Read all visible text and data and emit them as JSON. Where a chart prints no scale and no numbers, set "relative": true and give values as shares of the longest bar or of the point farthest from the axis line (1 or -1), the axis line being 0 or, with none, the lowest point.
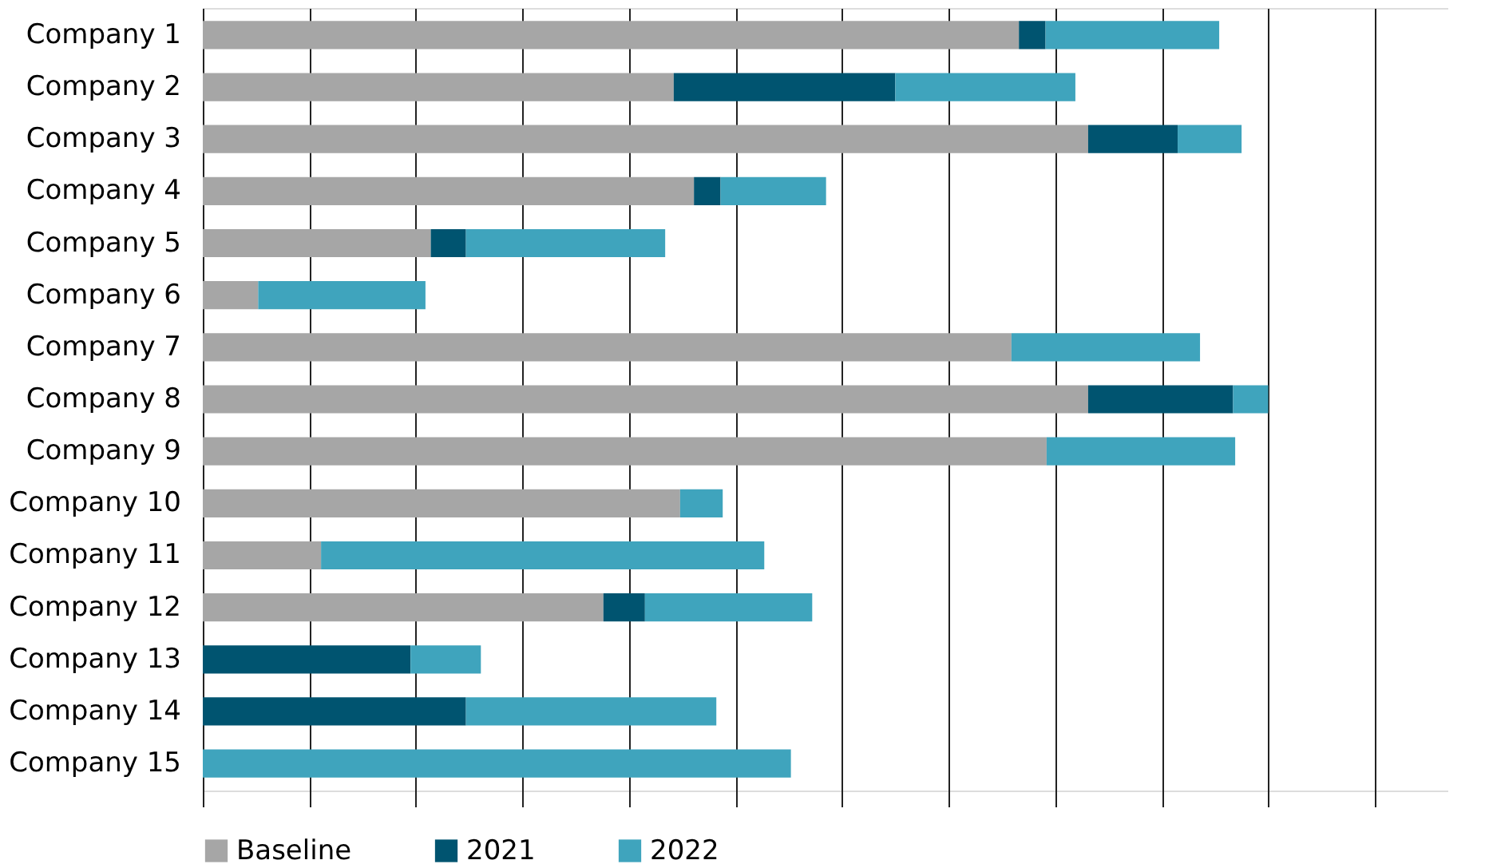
{
  "chart_data": {
    "type": "bar",
    "orientation": "horizontal",
    "stacked": true,
    "relative": true,
    "grid": "x",
    "legend": "bottom",
    "categories": [
      "Company 1",
      "Company 2",
      "Company 3",
      "Company 4",
      "Company 5",
      "Company 6",
      "Company 7",
      "Company 8",
      "Company 9",
      "Company 10",
      "Company 11",
      "Company 12",
      "Company 13",
      "Company 14",
      "Company 15"
    ],
    "series": [
      {
        "name": "Baseline",
        "color": "#a6a6a6",
        "values": [
          0.766,
          0.442,
          0.831,
          0.461,
          0.214,
          0.052,
          0.759,
          0.831,
          0.792,
          0.448,
          0.111,
          0.376,
          null,
          null,
          null
        ]
      },
      {
        "name": "2021",
        "color": "#005470",
        "values": [
          0.025,
          0.208,
          0.084,
          0.025,
          0.033,
          null,
          null,
          0.136,
          null,
          null,
          null,
          0.039,
          0.195,
          0.247,
          null
        ]
      },
      {
        "name": "2022",
        "color": "#3fa4bd",
        "values": [
          0.163,
          0.169,
          0.06,
          0.099,
          0.187,
          0.157,
          0.177,
          0.033,
          0.177,
          0.04,
          0.416,
          0.157,
          0.066,
          0.235,
          0.552
        ]
      }
    ]
  }
}
